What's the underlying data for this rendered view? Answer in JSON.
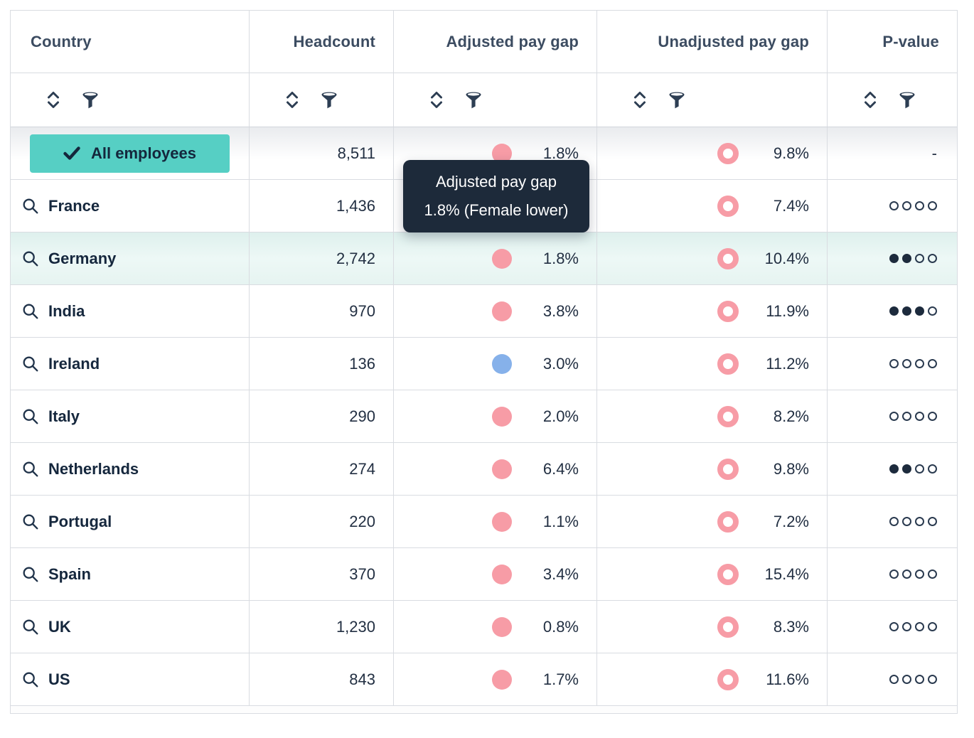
{
  "table": {
    "columns": [
      {
        "id": "country",
        "label": "Country"
      },
      {
        "id": "headcount",
        "label": "Headcount"
      },
      {
        "id": "adjusted",
        "label": "Adjusted pay gap"
      },
      {
        "id": "unadjusted",
        "label": "Unadjusted pay gap"
      },
      {
        "id": "pvalue",
        "label": "P-value"
      }
    ],
    "pvalue_dot_total": 4,
    "rows": [
      {
        "country": "All employees",
        "row_type": "all",
        "selected": true,
        "headcount": "8,511",
        "adjusted": "1.8%",
        "adjusted_dot": "pink",
        "unadjusted": "9.8%",
        "unadjusted_ring": "pink",
        "pvalue_text": "-",
        "pvalue_dots": null
      },
      {
        "country": "France",
        "row_type": "country",
        "headcount": "1,436",
        "adjusted": null,
        "adjusted_dot": null,
        "unadjusted": "7.4%",
        "unadjusted_ring": "pink",
        "pvalue_text": null,
        "pvalue_dots": 0
      },
      {
        "country": "Germany",
        "row_type": "country",
        "highlighted": true,
        "headcount": "2,742",
        "adjusted": "1.8%",
        "adjusted_dot": "pink",
        "unadjusted": "10.4%",
        "unadjusted_ring": "pink",
        "pvalue_text": null,
        "pvalue_dots": 2
      },
      {
        "country": "India",
        "row_type": "country",
        "headcount": "970",
        "adjusted": "3.8%",
        "adjusted_dot": "pink",
        "unadjusted": "11.9%",
        "unadjusted_ring": "pink",
        "pvalue_text": null,
        "pvalue_dots": 3
      },
      {
        "country": "Ireland",
        "row_type": "country",
        "headcount": "136",
        "adjusted": "3.0%",
        "adjusted_dot": "blue",
        "unadjusted": "11.2%",
        "unadjusted_ring": "pink",
        "pvalue_text": null,
        "pvalue_dots": 0
      },
      {
        "country": "Italy",
        "row_type": "country",
        "headcount": "290",
        "adjusted": "2.0%",
        "adjusted_dot": "pink",
        "unadjusted": "8.2%",
        "unadjusted_ring": "pink",
        "pvalue_text": null,
        "pvalue_dots": 0
      },
      {
        "country": "Netherlands",
        "row_type": "country",
        "headcount": "274",
        "adjusted": "6.4%",
        "adjusted_dot": "pink",
        "unadjusted": "9.8%",
        "unadjusted_ring": "pink",
        "pvalue_text": null,
        "pvalue_dots": 2
      },
      {
        "country": "Portugal",
        "row_type": "country",
        "headcount": "220",
        "adjusted": "1.1%",
        "adjusted_dot": "pink",
        "unadjusted": "7.2%",
        "unadjusted_ring": "pink",
        "pvalue_text": null,
        "pvalue_dots": 0
      },
      {
        "country": "Spain",
        "row_type": "country",
        "headcount": "370",
        "adjusted": "3.4%",
        "adjusted_dot": "pink",
        "unadjusted": "15.4%",
        "unadjusted_ring": "pink",
        "pvalue_text": null,
        "pvalue_dots": 0
      },
      {
        "country": "UK",
        "row_type": "country",
        "headcount": "1,230",
        "adjusted": "0.8%",
        "adjusted_dot": "pink",
        "unadjusted": "8.3%",
        "unadjusted_ring": "pink",
        "pvalue_text": null,
        "pvalue_dots": 0
      },
      {
        "country": "US",
        "row_type": "country",
        "headcount": "843",
        "adjusted": "1.7%",
        "adjusted_dot": "pink",
        "unadjusted": "11.6%",
        "unadjusted_ring": "pink",
        "pvalue_text": null,
        "pvalue_dots": 0
      }
    ]
  },
  "tooltip": {
    "line1": "Adjusted pay gap",
    "line2": "1.8% (Female lower)"
  },
  "icons": {
    "sort": "sort-icon",
    "filter": "filter-funnel-icon",
    "search": "search-icon",
    "check": "check-icon"
  },
  "colors": {
    "accent_teal": "#56cfc4",
    "highlight_row": "#e6f4f1",
    "dot_pink": "#f79ca6",
    "dot_blue": "#86b1ea",
    "tooltip_bg": "#1d2a3a",
    "text_dark": "#222f42",
    "header_text": "#3c4c61",
    "border": "#d9dce1"
  }
}
